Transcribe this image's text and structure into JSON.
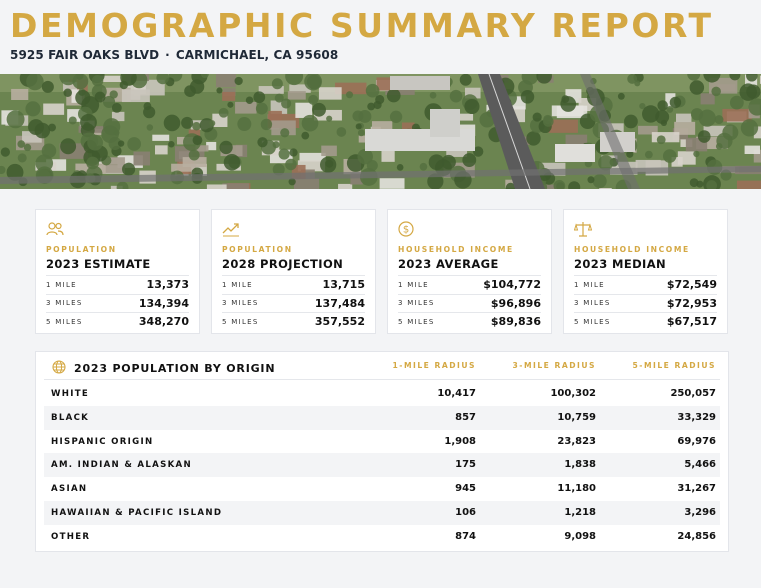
{
  "header": {
    "title": "DEMOGRAPHIC SUMMARY REPORT",
    "address": "5925 FAIR OAKS BLVD",
    "separator": "·",
    "city": "CARMICHAEL, CA 95608"
  },
  "colors": {
    "accent": "#d4a843",
    "text": "#111111",
    "background": "#f3f4f6",
    "card": "#ffffff"
  },
  "cards": [
    {
      "icon": "people-icon",
      "label": "POPULATION",
      "heading": "2023 ESTIMATE",
      "rows": [
        {
          "radius": "1 MILE",
          "value": "13,373"
        },
        {
          "radius": "3 MILES",
          "value": "134,394"
        },
        {
          "radius": "5 MILES",
          "value": "348,270"
        }
      ]
    },
    {
      "icon": "trend-up-icon",
      "label": "POPULATION",
      "heading": "2028 PROJECTION",
      "rows": [
        {
          "radius": "1 MILE",
          "value": "13,715"
        },
        {
          "radius": "3 MILES",
          "value": "137,484"
        },
        {
          "radius": "5 MILES",
          "value": "357,552"
        }
      ]
    },
    {
      "icon": "dollar-coin-icon",
      "label": "HOUSEHOLD INCOME",
      "heading": "2023 AVERAGE",
      "rows": [
        {
          "radius": "1 MILE",
          "value": "$104,772"
        },
        {
          "radius": "3 MILES",
          "value": "$96,896"
        },
        {
          "radius": "5 MILES",
          "value": "$89,836"
        }
      ]
    },
    {
      "icon": "scale-icon",
      "label": "HOUSEHOLD INCOME",
      "heading": "2023 MEDIAN",
      "rows": [
        {
          "radius": "1 MILE",
          "value": "$72,549"
        },
        {
          "radius": "3 MILES",
          "value": "$72,953"
        },
        {
          "radius": "5 MILES",
          "value": "$67,517"
        }
      ]
    }
  ],
  "origin": {
    "icon": "globe-icon",
    "title": "2023 POPULATION BY ORIGIN",
    "columns": [
      "1-MILE RADIUS",
      "3-MILE RADIUS",
      "5-MILE RADIUS"
    ],
    "rows": [
      {
        "name": "WHITE",
        "values": [
          "10,417",
          "100,302",
          "250,057"
        ]
      },
      {
        "name": "BLACK",
        "values": [
          "857",
          "10,759",
          "33,329"
        ]
      },
      {
        "name": "HISPANIC ORIGIN",
        "values": [
          "1,908",
          "23,823",
          "69,976"
        ]
      },
      {
        "name": "AM. INDIAN & ALASKAN",
        "values": [
          "175",
          "1,838",
          "5,466"
        ]
      },
      {
        "name": "ASIAN",
        "values": [
          "945",
          "11,180",
          "31,267"
        ]
      },
      {
        "name": "HAWAIIAN & PACIFIC ISLAND",
        "values": [
          "106",
          "1,218",
          "3,296"
        ]
      },
      {
        "name": "OTHER",
        "values": [
          "874",
          "9,098",
          "24,856"
        ]
      }
    ]
  }
}
